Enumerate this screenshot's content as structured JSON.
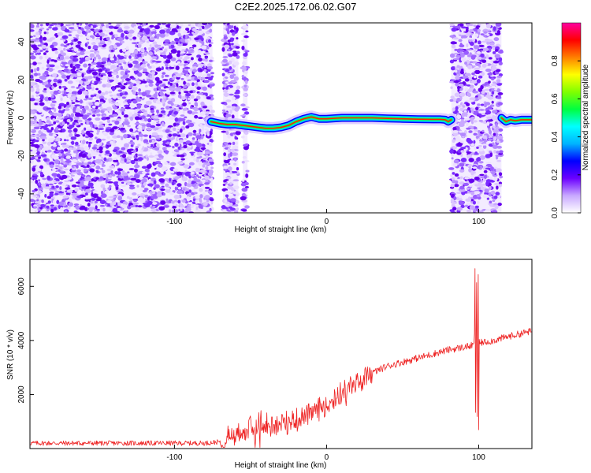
{
  "title": "C2E2.2025.172.06.02.G07",
  "chart_data": [
    {
      "type": "heatmap",
      "xlabel": "Height of straight line (km)",
      "ylabel": "Frequency (Hz)",
      "xlim": [
        -195,
        135
      ],
      "ylim": [
        -50,
        50
      ],
      "x_ticks": [
        -100,
        0,
        100
      ],
      "x_tick_labels": [
        "-100",
        "0",
        "100"
      ],
      "y_ticks": [
        -40,
        -20,
        0,
        20,
        40
      ],
      "y_tick_labels": [
        "-40",
        "-20",
        "0",
        "20",
        "40"
      ],
      "colorbar": {
        "label": "Normalized spectral amplitude",
        "range": [
          0,
          1
        ],
        "ticks": [
          0.0,
          0.2,
          0.4,
          0.6,
          0.8
        ],
        "tick_labels": [
          "0.0",
          "0.2",
          "0.4",
          "0.6",
          "0.8"
        ],
        "colors": [
          "#ffffff",
          "#c8a8ff",
          "#6b00ff",
          "#0000ff",
          "#00b4ff",
          "#00ffff",
          "#00ff40",
          "#80ff00",
          "#ffff00",
          "#ff8000",
          "#ff0000",
          "#ff00a0"
        ]
      },
      "noise_regions_km": [
        [
          -195,
          -75
        ],
        [
          -68,
          -58
        ],
        [
          -55,
          -52
        ],
        [
          82,
          115
        ]
      ],
      "signal_track": {
        "x": [
          -76,
          -70,
          -65,
          -60,
          -55,
          -50,
          -45,
          -40,
          -35,
          -30,
          -25,
          -20,
          -15,
          -10,
          -5,
          0,
          10,
          20,
          30,
          40,
          50,
          60,
          70,
          75,
          78,
          80,
          82
        ],
        "y": [
          -2,
          -3,
          -3.5,
          -3.5,
          -4,
          -4.5,
          -5,
          -5.5,
          -5.5,
          -5,
          -4,
          -2,
          -0.5,
          0.5,
          -0.5,
          -0.5,
          0,
          0,
          0,
          -0.3,
          -0.5,
          -0.7,
          -0.8,
          -0.8,
          -1,
          -2,
          -1
        ]
      },
      "signal_track_2": {
        "x": [
          115,
          118,
          121,
          124,
          128,
          131,
          135
        ],
        "y": [
          0,
          -2,
          -1,
          -1.5,
          -1,
          -1,
          -1
        ]
      }
    },
    {
      "type": "line",
      "xlabel": "Height of straight line (km)",
      "ylabel": "SNR (10 * v/v)",
      "xlim": [
        -195,
        135
      ],
      "ylim": [
        0,
        7000
      ],
      "x_ticks": [
        -100,
        0,
        100
      ],
      "x_tick_labels": [
        "-100",
        "0",
        "100"
      ],
      "y_ticks": [
        2000,
        4000,
        6000
      ],
      "y_tick_labels": [
        "2000",
        "4000",
        "6000"
      ],
      "color": "#ee2222",
      "series": [
        {
          "x": [
            -195,
            -180,
            -160,
            -140,
            -120,
            -100,
            -80,
            -70,
            -65,
            -60,
            -50,
            -40,
            -30,
            -20,
            -10,
            0,
            10,
            20,
            30,
            40,
            50,
            60,
            70,
            80,
            90,
            95,
            100,
            110,
            120,
            135
          ],
          "y": [
            200,
            200,
            200,
            200,
            200,
            200,
            200,
            250,
            400,
            550,
            700,
            800,
            900,
            1050,
            1300,
            1650,
            2050,
            2450,
            2800,
            3050,
            3200,
            3350,
            3500,
            3650,
            3750,
            3800,
            3900,
            4000,
            4150,
            4350
          ]
        }
      ]
    }
  ]
}
